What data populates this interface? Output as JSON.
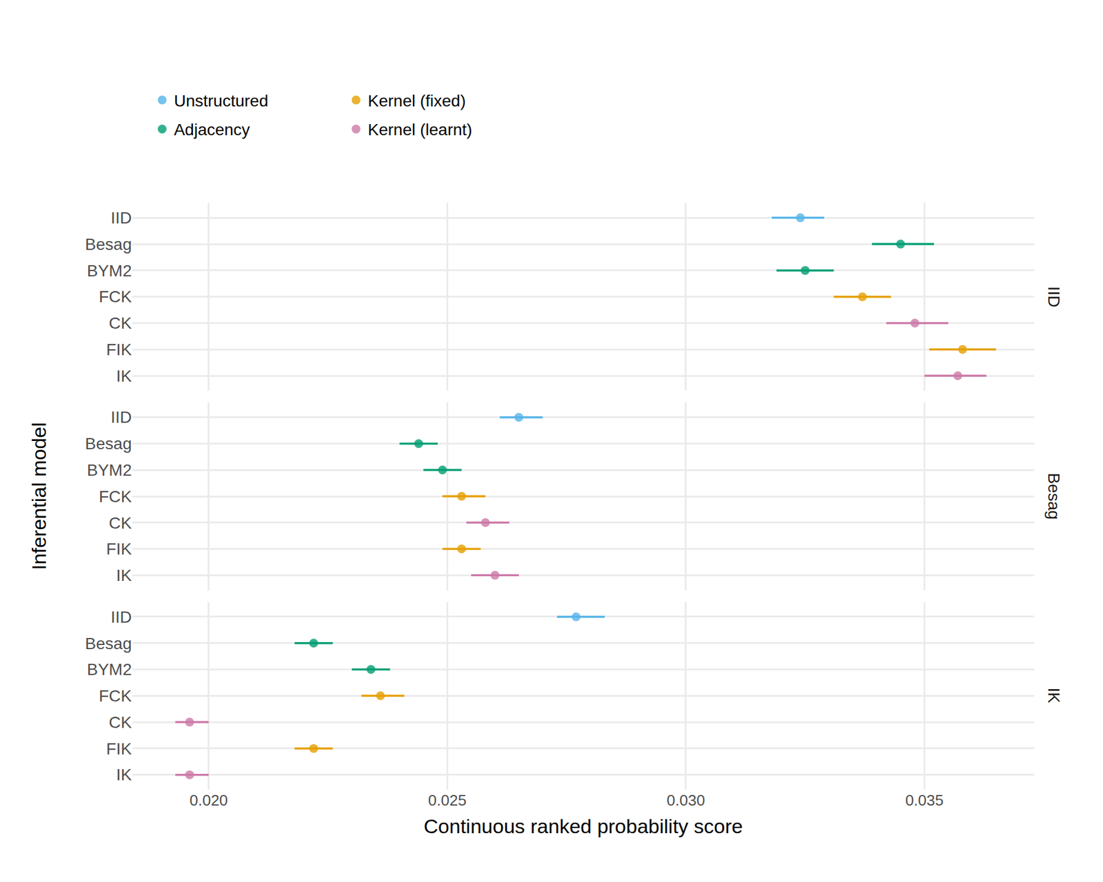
{
  "chart_data": {
    "type": "dot",
    "x_label": "Continuous ranked probability score",
    "y_label": "Inferential model",
    "xlim": [
      0.0184,
      0.0373
    ],
    "xticks": [
      {
        "value": 0.02,
        "label": "0.020"
      },
      {
        "value": 0.025,
        "label": "0.025"
      },
      {
        "value": 0.03,
        "label": "0.030"
      },
      {
        "value": 0.035,
        "label": "0.035"
      }
    ],
    "grid": true,
    "series": [
      {
        "name": "Unstructured",
        "color": "#56B4E9"
      },
      {
        "name": "Adjacency",
        "color": "#009E73"
      },
      {
        "name": "Kernel (fixed)",
        "color": "#E69F00"
      },
      {
        "name": "Kernel (learnt)",
        "color": "#CC79A7"
      }
    ],
    "panels": [
      {
        "title": "IID",
        "categories": [
          "IID",
          "Besag",
          "BYM2",
          "FCK",
          "CK",
          "FIK",
          "IK"
        ],
        "groups": [
          "Unstructured",
          "Adjacency",
          "Adjacency",
          "Kernel (fixed)",
          "Kernel (learnt)",
          "Kernel (fixed)",
          "Kernel (learnt)"
        ],
        "values": [
          0.0324,
          0.0345,
          0.0325,
          0.0337,
          0.0348,
          0.0358,
          0.0357
        ],
        "lower": [
          0.0318,
          0.0339,
          0.0319,
          0.0331,
          0.0342,
          0.0351,
          0.035
        ],
        "upper": [
          0.0329,
          0.0352,
          0.0331,
          0.0343,
          0.0355,
          0.0365,
          0.0363
        ]
      },
      {
        "title": "Besag",
        "categories": [
          "IID",
          "Besag",
          "BYM2",
          "FCK",
          "CK",
          "FIK",
          "IK"
        ],
        "groups": [
          "Unstructured",
          "Adjacency",
          "Adjacency",
          "Kernel (fixed)",
          "Kernel (learnt)",
          "Kernel (fixed)",
          "Kernel (learnt)"
        ],
        "values": [
          0.0265,
          0.0244,
          0.0249,
          0.0253,
          0.0258,
          0.0253,
          0.026
        ],
        "lower": [
          0.0261,
          0.024,
          0.0245,
          0.0249,
          0.0254,
          0.0249,
          0.0255
        ],
        "upper": [
          0.027,
          0.0248,
          0.0253,
          0.0258,
          0.0263,
          0.0257,
          0.0265
        ]
      },
      {
        "title": "IK",
        "categories": [
          "IID",
          "Besag",
          "BYM2",
          "FCK",
          "CK",
          "FIK",
          "IK"
        ],
        "groups": [
          "Unstructured",
          "Adjacency",
          "Adjacency",
          "Kernel (fixed)",
          "Kernel (learnt)",
          "Kernel (fixed)",
          "Kernel (learnt)"
        ],
        "values": [
          0.0277,
          0.0222,
          0.0234,
          0.0236,
          0.0196,
          0.0222,
          0.0196
        ],
        "lower": [
          0.0273,
          0.0218,
          0.023,
          0.0232,
          0.0193,
          0.0218,
          0.0193
        ],
        "upper": [
          0.0283,
          0.0226,
          0.0238,
          0.0241,
          0.02,
          0.0226,
          0.02
        ]
      }
    ]
  }
}
